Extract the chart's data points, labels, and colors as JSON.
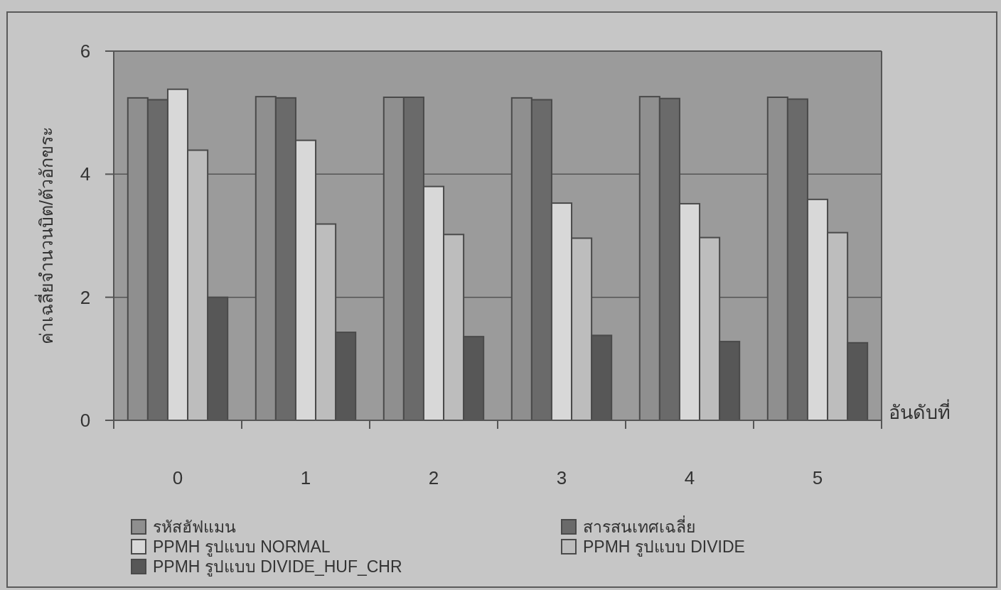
{
  "chart_data": {
    "type": "bar",
    "categories": [
      "0",
      "1",
      "2",
      "3",
      "4",
      "5"
    ],
    "xlabel": "อันดับที่",
    "ylabel": "ค่าเฉลี่ยจำนวนบิต/ตัวอักขระ",
    "ylim": [
      0,
      6
    ],
    "yticks": [
      0,
      2,
      4,
      6
    ],
    "grid": "y",
    "legend": "bottom",
    "series": [
      {
        "name": "รหัสฮัฟแมน",
        "color": "#8f8f8f",
        "values": [
          5.24,
          5.26,
          5.25,
          5.24,
          5.26,
          5.25
        ]
      },
      {
        "name": "สารสนเทศเฉลี่ย",
        "color": "#6a6a6a",
        "values": [
          5.21,
          5.24,
          5.25,
          5.21,
          5.23,
          5.22
        ]
      },
      {
        "name": "PPMH รูปแบบ NORMAL",
        "color": "#d8d8d8",
        "values": [
          5.38,
          4.55,
          3.8,
          3.53,
          3.52,
          3.59
        ]
      },
      {
        "name": "PPMH รูปแบบ DIVIDE",
        "color": "#bdbdbd",
        "values": [
          4.39,
          3.19,
          3.02,
          2.96,
          2.97,
          3.05
        ]
      },
      {
        "name": "PPMH รูปแบบ DIVIDE_HUF_CHR",
        "color": "#575757",
        "values": [
          2.0,
          1.43,
          1.36,
          1.38,
          1.28,
          1.26
        ]
      }
    ]
  }
}
